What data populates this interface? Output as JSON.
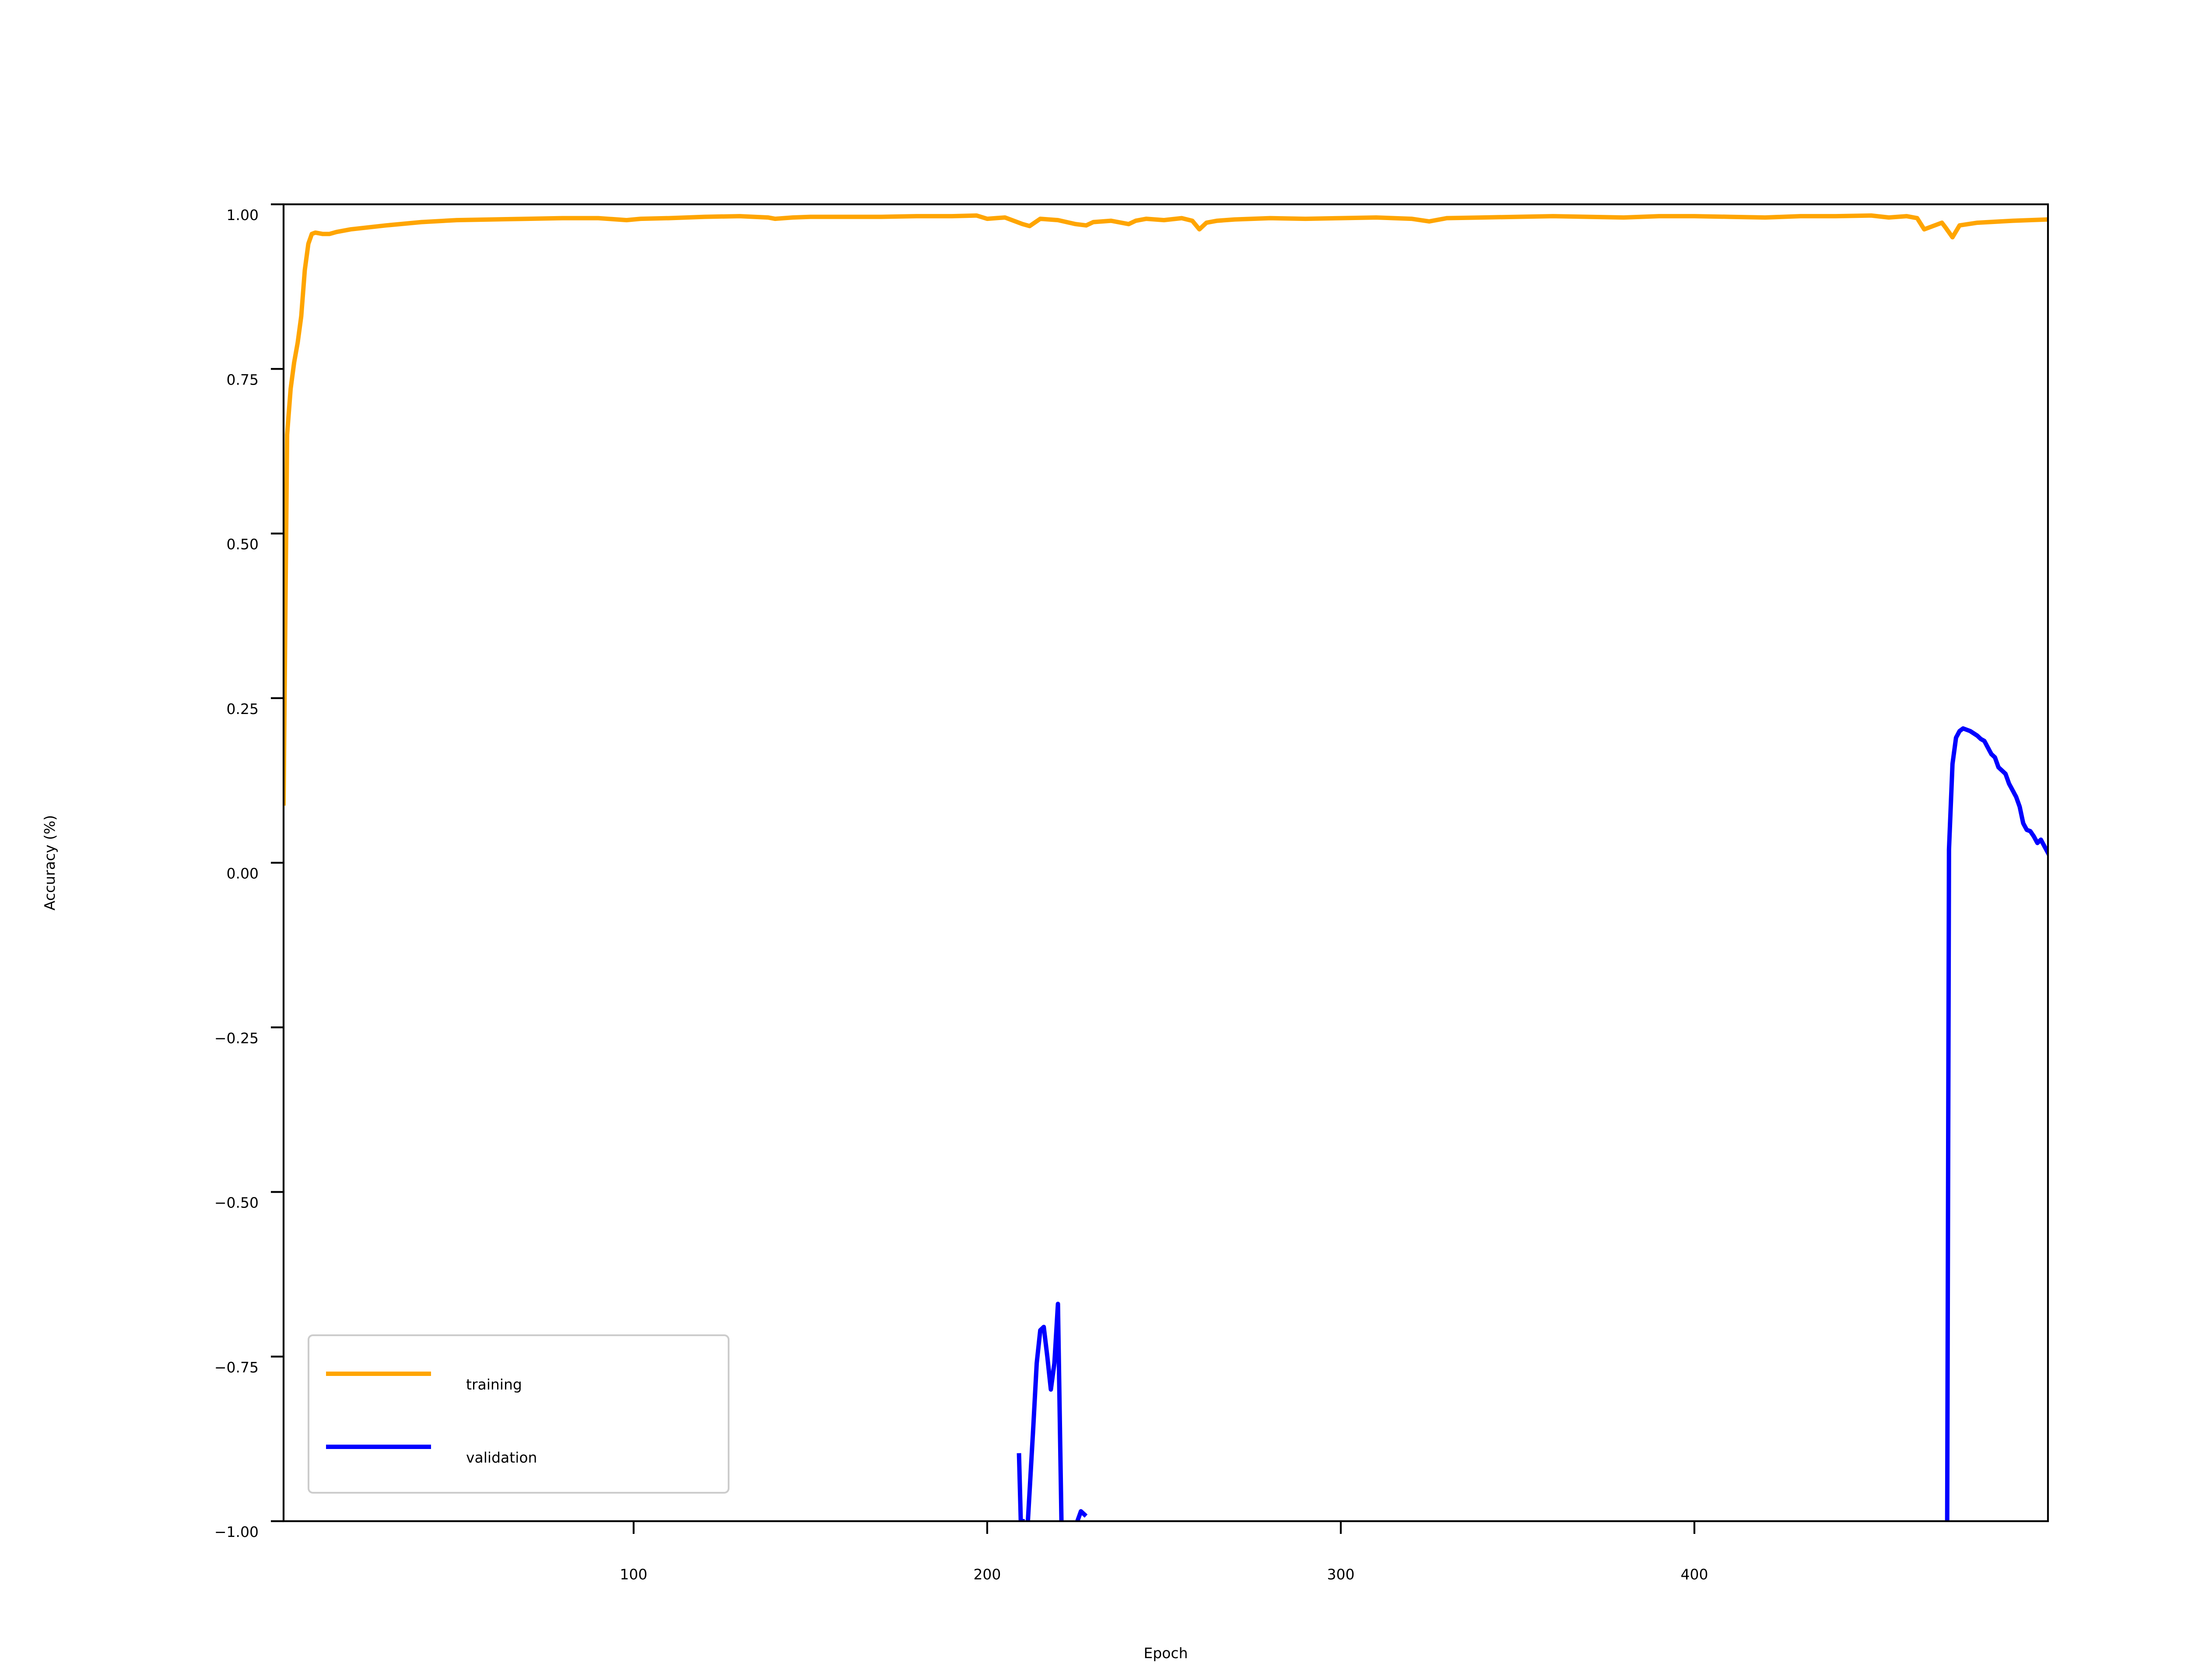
{
  "chart_data": {
    "type": "line",
    "title": "",
    "xlabel": "Epoch",
    "ylabel": "Accuracy (%)",
    "xlim": [
      1,
      500
    ],
    "ylim": [
      -1.0,
      1.0
    ],
    "x_ticks": [
      100,
      200,
      300,
      400
    ],
    "x_tick_labels": [
      "100",
      "200",
      "300",
      "400"
    ],
    "y_ticks": [
      -1.0,
      -0.75,
      -0.5,
      -0.25,
      0.0,
      0.25,
      0.5,
      0.75,
      1.0
    ],
    "y_tick_labels": [
      "−1.00",
      "−0.75",
      "−0.50",
      "−0.25",
      "0.00",
      "0.25",
      "0.50",
      "0.75",
      "1.00"
    ],
    "grid": false,
    "legend_position": "lower-left",
    "series": [
      {
        "name": "training",
        "color": "#FFA500",
        "x": [
          1,
          2,
          3,
          4,
          5,
          6,
          7,
          8,
          9,
          10,
          12,
          14,
          16,
          20,
          25,
          30,
          40,
          50,
          60,
          70,
          80,
          90,
          98,
          102,
          110,
          120,
          130,
          138,
          140,
          145,
          150,
          160,
          170,
          180,
          190,
          197,
          200,
          205,
          210,
          212,
          215,
          220,
          225,
          228,
          230,
          235,
          240,
          242,
          245,
          250,
          255,
          258,
          260,
          262,
          265,
          270,
          280,
          290,
          300,
          310,
          320,
          325,
          330,
          340,
          350,
          360,
          370,
          380,
          390,
          400,
          410,
          420,
          430,
          440,
          450,
          455,
          460,
          463,
          465,
          470,
          471,
          473,
          475,
          480,
          490,
          500
        ],
        "y": [
          0.09,
          0.65,
          0.72,
          0.76,
          0.79,
          0.83,
          0.9,
          0.94,
          0.955,
          0.957,
          0.955,
          0.955,
          0.958,
          0.962,
          0.965,
          0.968,
          0.973,
          0.976,
          0.977,
          0.978,
          0.979,
          0.979,
          0.976,
          0.978,
          0.979,
          0.981,
          0.982,
          0.98,
          0.978,
          0.98,
          0.981,
          0.981,
          0.981,
          0.982,
          0.982,
          0.983,
          0.978,
          0.98,
          0.97,
          0.967,
          0.978,
          0.976,
          0.97,
          0.968,
          0.973,
          0.975,
          0.97,
          0.975,
          0.978,
          0.976,
          0.979,
          0.975,
          0.962,
          0.972,
          0.975,
          0.977,
          0.979,
          0.978,
          0.979,
          0.98,
          0.978,
          0.974,
          0.979,
          0.98,
          0.981,
          0.982,
          0.981,
          0.98,
          0.982,
          0.982,
          0.981,
          0.98,
          0.982,
          0.982,
          0.983,
          0.98,
          0.982,
          0.979,
          0.962,
          0.972,
          0.965,
          0.95,
          0.968,
          0.972,
          0.975,
          0.977
        ]
      },
      {
        "name": "validation",
        "color": "#0000FF",
        "segments": [
          {
            "x": [
              209,
              209.5,
              210
            ],
            "y": [
              -0.9,
              -1.0,
              -1.0
            ]
          },
          {
            "x": [
              211.5,
              213,
              214,
              215,
              216,
              217,
              218,
              219,
              220,
              221
            ],
            "y": [
              -1.0,
              -0.86,
              -0.76,
              -0.71,
              -0.705,
              -0.75,
              -0.8,
              -0.76,
              -0.67,
              -1.0
            ]
          },
          {
            "x": [
              225.5,
              226.5,
              227.5
            ],
            "y": [
              -1.0,
              -0.985,
              -0.99
            ]
          },
          {
            "x": [
              471.5,
              472,
              473,
              474,
              475,
              476,
              478,
              480,
              481,
              482,
              483,
              484,
              485,
              486,
              487,
              488,
              489,
              490,
              491,
              492,
              493,
              494,
              495,
              496,
              497,
              498,
              499,
              500
            ],
            "y": [
              -1.0,
              0.02,
              0.15,
              0.19,
              0.2,
              0.204,
              0.2,
              0.193,
              0.188,
              0.185,
              0.175,
              0.165,
              0.16,
              0.145,
              0.14,
              0.135,
              0.12,
              0.11,
              0.1,
              0.085,
              0.06,
              0.05,
              0.048,
              0.04,
              0.03,
              0.035,
              0.025,
              0.015
            ]
          }
        ]
      }
    ]
  }
}
